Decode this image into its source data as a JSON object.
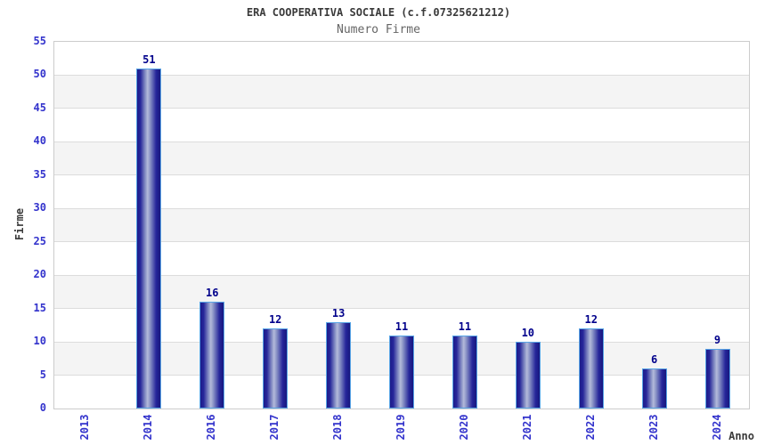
{
  "chart_data": {
    "type": "bar",
    "title": "ERA COOPERATIVA SOCIALE (c.f.07325621212)",
    "subtitle": "Numero Firme",
    "xlabel": "Anno",
    "ylabel": "Firme",
    "categories": [
      "2013",
      "2014",
      "2016",
      "2017",
      "2018",
      "2019",
      "2020",
      "2021",
      "2022",
      "2023",
      "2024"
    ],
    "values": [
      0,
      51,
      16,
      12,
      13,
      11,
      11,
      10,
      12,
      6,
      9
    ],
    "ylim": [
      0,
      55
    ],
    "ytick_step": 5,
    "yticks": [
      0,
      5,
      10,
      15,
      20,
      25,
      30,
      35,
      40,
      45,
      50,
      55
    ],
    "grid": true,
    "legend": false,
    "bands": "alternating horizontal stripes every 5 units, white from 0, gray from 5"
  },
  "colors": {
    "background": "#ffffff",
    "title_text": "#3a3a3a",
    "subtitle_text": "#666666",
    "tick_blue": "#3333cc",
    "value_navy": "#00008b",
    "bar_border": "#58a5e6",
    "bar_dark": "#1c1c8a",
    "bar_mid": "#26269a",
    "bar_light": "#b3bada",
    "band_gray": "#f4f4f4",
    "grid_line": "#dcdcdc",
    "plot_border": "#cccccc"
  }
}
